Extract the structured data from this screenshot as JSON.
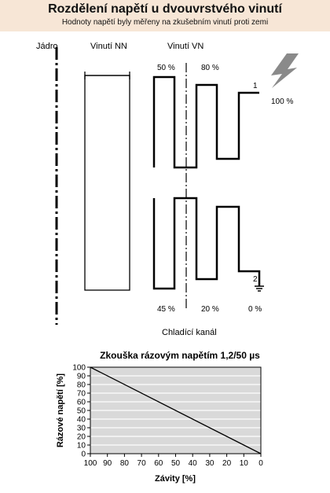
{
  "header": {
    "title": "Rozdělení napětí u dvouvrstvého vinutí",
    "subtitle": "Hodnoty napětí byly měřeny na zkušebním vinutí proti zemi"
  },
  "diagram": {
    "label_core": "Jádro",
    "label_lv": "Vinutí NN",
    "label_hv": "Vinutí VN",
    "label_cooling": "Chladící kanál",
    "pct_top_1": "50 %",
    "pct_top_2": "80 %",
    "pct_top_3": "100 %",
    "pct_bottom_1": "45 %",
    "pct_bottom_2": "20 %",
    "pct_bottom_3": "0 %",
    "terminal_1": "1",
    "terminal_2": "2",
    "colors": {
      "lightning": "#8a8a8a"
    }
  },
  "chart_data": {
    "type": "line",
    "title": "Zkouška rázovým napětím 1,2/50 µs",
    "xlabel": "Závity [%]",
    "ylabel": "Rázové napětí  [%]",
    "x_ticks": [
      "100",
      "90",
      "80",
      "70",
      "60",
      "50",
      "40",
      "30",
      "20",
      "10",
      "0"
    ],
    "y_ticks": [
      "100",
      "90",
      "80",
      "70",
      "60",
      "50",
      "40",
      "30",
      "20",
      "10",
      "0"
    ],
    "xlim": [
      100,
      0
    ],
    "ylim": [
      0,
      100
    ],
    "grid": true,
    "series": [
      {
        "x": [
          100,
          0
        ],
        "y": [
          100,
          0
        ]
      }
    ],
    "colors": {
      "plot_bg": "#d9d9d9",
      "grid": "#ffffff",
      "line": "#000000"
    }
  }
}
